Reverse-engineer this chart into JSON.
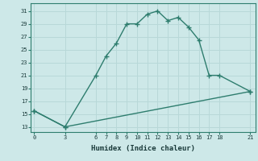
{
  "line1_x": [
    0,
    3,
    6,
    7,
    8,
    9,
    10,
    11,
    12,
    13,
    14,
    15,
    16,
    17,
    18,
    21
  ],
  "line1_y": [
    15.5,
    13.0,
    21.0,
    24.0,
    26.0,
    29.0,
    29.0,
    30.5,
    31.0,
    29.5,
    30.0,
    28.5,
    26.5,
    21.0,
    21.0,
    18.5
  ],
  "line2_x": [
    0,
    3,
    21
  ],
  "line2_y": [
    15.5,
    13.0,
    18.5
  ],
  "line_color": "#2e7d6e",
  "bg_color": "#cde8e8",
  "grid_color": "#b8d8d8",
  "xlabel": "Humidex (Indice chaleur)",
  "yticks": [
    13,
    15,
    17,
    19,
    21,
    23,
    25,
    27,
    29,
    31
  ],
  "xticks": [
    0,
    3,
    6,
    7,
    8,
    9,
    10,
    11,
    12,
    13,
    14,
    15,
    16,
    17,
    18,
    21
  ],
  "xlim": [
    -0.3,
    21.5
  ],
  "ylim": [
    12.2,
    32.2
  ],
  "marker": "+",
  "marker_size": 5,
  "linewidth": 1.0
}
